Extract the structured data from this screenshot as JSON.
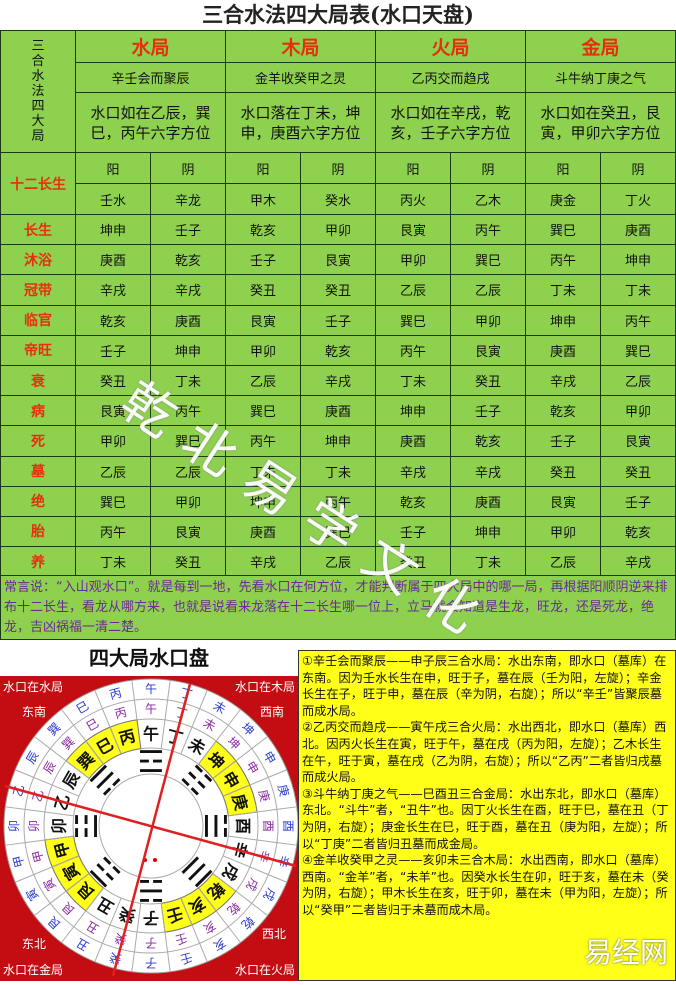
{
  "title": "三合水法四大局表(水口天盘)",
  "side_label": "三合水法四大局",
  "row_header": "十二长生",
  "colors": {
    "table_green": "#8ed14f",
    "label_red": "#e5300e",
    "note_purple": "#6a2a92",
    "disc_red": "#c40d13",
    "highlight_yellow": "#ffff18"
  },
  "bureaus": [
    {
      "name": "水局",
      "verse": "辛壬会而聚辰",
      "shuikou": "水口如在乙辰，巽巳，丙午六字方位"
    },
    {
      "name": "木局",
      "verse": "金羊收癸甲之灵",
      "shuikou": "水口落在丁未，坤申，庚酉六字方位"
    },
    {
      "name": "火局",
      "verse": "乙丙交而趋戌",
      "shuikou": "水口如在辛戌，乾亥，壬子六字方位"
    },
    {
      "name": "金局",
      "verse": "斗牛纳丁庚之气",
      "shuikou": "水口如在癸丑，艮寅，甲卯六字方位"
    }
  ],
  "yinyang": [
    "阳",
    "阴",
    "阳",
    "阴",
    "阳",
    "阴",
    "阳",
    "阴"
  ],
  "stems": [
    "壬水",
    "辛龙",
    "甲木",
    "癸水",
    "丙火",
    "乙木",
    "庚金",
    "丁火"
  ],
  "rows": [
    {
      "label": "长生",
      "cells": [
        "坤申",
        "壬子",
        "乾亥",
        "甲卯",
        "艮寅",
        "丙午",
        "巽巳",
        "庚酉"
      ]
    },
    {
      "label": "沐浴",
      "cells": [
        "庚酉",
        "乾亥",
        "壬子",
        "艮寅",
        "甲卯",
        "巽巳",
        "丙午",
        "坤申"
      ]
    },
    {
      "label": "冠带",
      "cells": [
        "辛戌",
        "辛戌",
        "癸丑",
        "癸丑",
        "乙辰",
        "乙辰",
        "丁未",
        "丁未"
      ]
    },
    {
      "label": "临官",
      "cells": [
        "乾亥",
        "庚酉",
        "艮寅",
        "壬子",
        "巽巳",
        "甲卯",
        "坤申",
        "丙午"
      ]
    },
    {
      "label": "帝旺",
      "cells": [
        "壬子",
        "坤申",
        "甲卯",
        "乾亥",
        "丙午",
        "艮寅",
        "庚酉",
        "巽巳"
      ]
    },
    {
      "label": "衰",
      "cells": [
        "癸丑",
        "丁未",
        "乙辰",
        "辛戌",
        "丁未",
        "癸丑",
        "辛戌",
        "乙辰"
      ]
    },
    {
      "label": "病",
      "cells": [
        "艮寅",
        "丙午",
        "巽巳",
        "庚酉",
        "坤申",
        "壬子",
        "乾亥",
        "甲卯"
      ]
    },
    {
      "label": "死",
      "cells": [
        "甲卯",
        "巽巳",
        "丙午",
        "坤申",
        "庚酉",
        "乾亥",
        "壬子",
        "艮寅"
      ]
    },
    {
      "label": "墓",
      "cells": [
        "乙辰",
        "乙辰",
        "丁未",
        "丁未",
        "辛戌",
        "辛戌",
        "癸丑",
        "癸丑"
      ]
    },
    {
      "label": "绝",
      "cells": [
        "巽巳",
        "甲卯",
        "坤申",
        "丙午",
        "乾亥",
        "庚酉",
        "艮寅",
        "壬子"
      ]
    },
    {
      "label": "胎",
      "cells": [
        "丙午",
        "艮寅",
        "庚酉",
        "巽巳",
        "壬子",
        "坤申",
        "甲卯",
        "乾亥"
      ]
    },
    {
      "label": "养",
      "cells": [
        "丁未",
        "癸丑",
        "辛戌",
        "乙辰",
        "癸丑",
        "丁未",
        "乙辰",
        "辛戌"
      ]
    }
  ],
  "note": "常言说：“入山观水口”。就是每到一地，先看水口在何方位，才能判断属于四大局中的哪一局，再根据阳顺阴逆来排布十二长生，看龙从哪方来，也就是说看来龙落在十二长生哪一位上，立马就会知道是生龙，旺龙，还是死龙，绝龙，吉凶祸福一清二楚。",
  "disc": {
    "title": "四大局水口盘",
    "corners": {
      "tl": "水口在水局",
      "tr": "水口在木局",
      "bl": "水口在金局",
      "br": "水口在火局"
    },
    "directions": {
      "se": "东南",
      "sw": "西南",
      "ne": "东北",
      "nw": "西北"
    },
    "mountains": [
      "午",
      "丁",
      "未",
      "坤",
      "申",
      "庚",
      "酉",
      "辛",
      "戌",
      "乾",
      "亥",
      "壬",
      "子",
      "癸",
      "丑",
      "艮",
      "寅",
      "甲",
      "卯",
      "乙",
      "辰",
      "巽",
      "巳",
      "丙"
    ],
    "highlighted": [
      "巽",
      "巳",
      "丙",
      "坤",
      "申",
      "庚",
      "乾",
      "亥",
      "壬",
      "艮",
      "寅",
      "甲"
    ],
    "trigrams": [
      "☲",
      "☷",
      "☱",
      "☰",
      "☵",
      "☶",
      "☳",
      "☴"
    ]
  },
  "explanations": [
    "①辛壬会而聚辰——申子辰三合水局：水出东南，即水口（墓库）在东南。因为壬水长生在申，旺于子，墓在辰（壬为阳，左旋）；辛金长生在子，旺于申，墓在辰（辛为阴，右旋）；所以“辛壬”皆聚辰墓而成水局。",
    "②乙丙交而趋戌——寅午戌三合火局：水出西北，即水口（墓库）西北。因丙火长生在寅，旺于午，墓在戌（丙为阳，左旋）；乙木长生在午，旺于寅，墓在戌（乙为阴，右旋）；所以“乙丙”二者皆归戌墓而成火局。",
    "③斗牛纳丁庚之气——巳酉丑三合金局：水出东北，即水口（墓库）东北。“斗牛”者，“丑牛”也。因丁火长生在酉，旺于巳，墓在丑（丁为阴，右旋）；庚金长生在巳，旺于酉，墓在丑（庚为阳，左旋）；所以“丁庚”二者皆归丑墓而成金局。",
    "④金羊收癸甲之灵——亥卯未三合木局：水出西南，即水口（墓库）西南。“金羊”者，“未羊”也。因癸水长生在卯，旺于亥，墓在未（癸为阴，右旋）；甲木长生在亥，旺于卯，墓在未（甲为阳，左旋）；所以“癸甲”二者皆归于未墓而成木局。"
  ],
  "watermark": "乾北易学文化",
  "logo": "易经网"
}
